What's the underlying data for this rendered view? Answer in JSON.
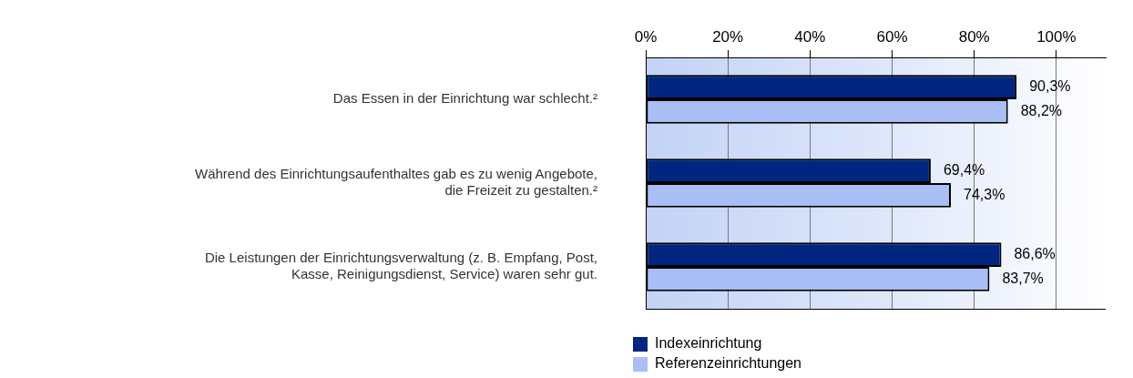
{
  "chart_data": {
    "type": "bar",
    "orientation": "horizontal",
    "categories": [
      "Das Essen in der Einrichtung war schlecht.²",
      "Während des Einrichtungsaufenthaltes gab es zu wenig Angebote, die Freizeit zu gestalten.²",
      "Die Leistungen der Einrichtungsverwaltung (z. B. Empfang, Post, Kasse, Reinigungsdienst, Service) waren sehr gut."
    ],
    "series": [
      {
        "name": "Indexeinrichtung",
        "color": "#002680",
        "values": [
          90.3,
          69.4,
          86.6
        ],
        "value_labels": [
          "90,3%",
          "69,4%",
          "86,6%"
        ]
      },
      {
        "name": "Referenzeinrichtungen",
        "color": "#a8bef5",
        "values": [
          88.2,
          74.3,
          83.7
        ],
        "value_labels": [
          "88,2%",
          "74,3%",
          "83,7%"
        ]
      }
    ],
    "xlim": [
      0,
      112
    ],
    "xticks": [
      {
        "value": 0,
        "label": "0%"
      },
      {
        "value": 20,
        "label": "20%"
      },
      {
        "value": 40,
        "label": "40%"
      },
      {
        "value": 60,
        "label": "60%"
      },
      {
        "value": 80,
        "label": "80%"
      },
      {
        "value": 100,
        "label": "100%"
      }
    ],
    "grid": "x",
    "legend": "bottom left"
  }
}
